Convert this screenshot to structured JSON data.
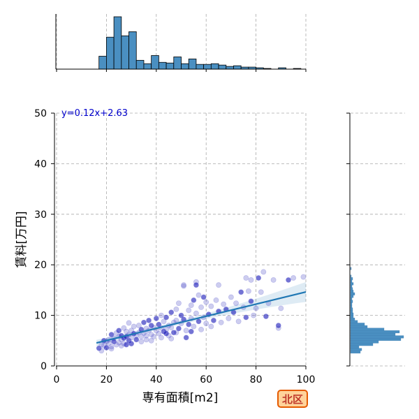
{
  "chart_data": {
    "type": "scatter",
    "xlabel": "専有面積[m2]",
    "ylabel": "賃料[万円]",
    "xlim": [
      0,
      100
    ],
    "ylim": [
      0,
      50
    ],
    "x_ticks": [
      0,
      20,
      40,
      60,
      80,
      100
    ],
    "y_ticks": [
      0,
      10,
      20,
      30,
      40,
      50
    ],
    "grid": true,
    "regression": {
      "slope": 0.12,
      "intercept": 2.63,
      "label": "y=0.12x+2.63",
      "x_range": [
        16,
        100
      ]
    },
    "points": [
      [
        17,
        3.5
      ],
      [
        18,
        4.2
      ],
      [
        18,
        3.0
      ],
      [
        19,
        5.0
      ],
      [
        19,
        4.0
      ],
      [
        20,
        4.8
      ],
      [
        20,
        3.6
      ],
      [
        21,
        5.2
      ],
      [
        21,
        4.5
      ],
      [
        22,
        6.2
      ],
      [
        22,
        3.8
      ],
      [
        23,
        5.5
      ],
      [
        23,
        4.8
      ],
      [
        24,
        6.5
      ],
      [
        24,
        4.2
      ],
      [
        25,
        7.0
      ],
      [
        25,
        5.8
      ],
      [
        25,
        4.6
      ],
      [
        26,
        6.0
      ],
      [
        26,
        5.2
      ],
      [
        27,
        7.5
      ],
      [
        27,
        5.5
      ],
      [
        27,
        4.4
      ],
      [
        28,
        6.8
      ],
      [
        28,
        5.8
      ],
      [
        29,
        8.5
      ],
      [
        29,
        6.2
      ],
      [
        29,
        5.0
      ],
      [
        30,
        7.0
      ],
      [
        30,
        5.6
      ],
      [
        31,
        6.4
      ],
      [
        31,
        7.8
      ],
      [
        32,
        6.0
      ],
      [
        32,
        5.2
      ],
      [
        33,
        8.0
      ],
      [
        33,
        6.6
      ],
      [
        34,
        7.2
      ],
      [
        34,
        5.8
      ],
      [
        35,
        6.5
      ],
      [
        35,
        8.6
      ],
      [
        36,
        7.4
      ],
      [
        36,
        6.0
      ],
      [
        37,
        9.0
      ],
      [
        37,
        7.0
      ],
      [
        38,
        6.2
      ],
      [
        38,
        8.0
      ],
      [
        39,
        7.6
      ],
      [
        39,
        5.8
      ],
      [
        40,
        9.4
      ],
      [
        40,
        7.0
      ],
      [
        41,
        6.4
      ],
      [
        41,
        8.2
      ],
      [
        42,
        10.0
      ],
      [
        42,
        7.5
      ],
      [
        43,
        6.8
      ],
      [
        43,
        8.8
      ],
      [
        44,
        7.2
      ],
      [
        44,
        9.6
      ],
      [
        45,
        8.0
      ],
      [
        45,
        6.0
      ],
      [
        46,
        10.6
      ],
      [
        46,
        7.6
      ],
      [
        47,
        8.6
      ],
      [
        47,
        6.6
      ],
      [
        48,
        11.2
      ],
      [
        48,
        9.0
      ],
      [
        49,
        7.4
      ],
      [
        49,
        12.4
      ],
      [
        50,
        8.4
      ],
      [
        50,
        10.0
      ],
      [
        51,
        16.0
      ],
      [
        51,
        15.8
      ],
      [
        51,
        9.2
      ],
      [
        52,
        7.0
      ],
      [
        53,
        11.0
      ],
      [
        53,
        8.2
      ],
      [
        54,
        12.0
      ],
      [
        54,
        9.4
      ],
      [
        55,
        13.0
      ],
      [
        55,
        7.8
      ],
      [
        56,
        16.6
      ],
      [
        56,
        16.0
      ],
      [
        56,
        10.4
      ],
      [
        57,
        14.0
      ],
      [
        57,
        8.8
      ],
      [
        58,
        11.6
      ],
      [
        59,
        9.6
      ],
      [
        59,
        13.6
      ],
      [
        60,
        8.4
      ],
      [
        60,
        12.6
      ],
      [
        61,
        10.2
      ],
      [
        62,
        7.8
      ],
      [
        62,
        11.8
      ],
      [
        63,
        9.0
      ],
      [
        64,
        13.0
      ],
      [
        65,
        16.0
      ],
      [
        65,
        10.8
      ],
      [
        66,
        8.6
      ],
      [
        67,
        12.2
      ],
      [
        68,
        11.2
      ],
      [
        69,
        9.4
      ],
      [
        70,
        13.6
      ],
      [
        71,
        10.6
      ],
      [
        72,
        12.4
      ],
      [
        73,
        8.8
      ],
      [
        74,
        14.6
      ],
      [
        75,
        11.6
      ],
      [
        76,
        17.4
      ],
      [
        76,
        9.6
      ],
      [
        77,
        14.8
      ],
      [
        78,
        17.0
      ],
      [
        78,
        12.8
      ],
      [
        79,
        10.0
      ],
      [
        80,
        11.4
      ],
      [
        81,
        17.4
      ],
      [
        82,
        14.6
      ],
      [
        83,
        18.6
      ],
      [
        84,
        9.8
      ],
      [
        85,
        12.4
      ],
      [
        87,
        17.0
      ],
      [
        89,
        8.0
      ],
      [
        89,
        7.5
      ],
      [
        90,
        11.4
      ],
      [
        93,
        17.0
      ],
      [
        95,
        17.4
      ],
      [
        99,
        17.6
      ],
      [
        44,
        6.4
      ],
      [
        46,
        5.4
      ],
      [
        48,
        6.6
      ],
      [
        52,
        5.6
      ],
      [
        38,
        5.0
      ],
      [
        34,
        4.8
      ],
      [
        30,
        4.4
      ],
      [
        26,
        4.0
      ],
      [
        22,
        3.4
      ],
      [
        28,
        4.2
      ],
      [
        36,
        5.2
      ],
      [
        42,
        5.6
      ],
      [
        54,
        6.8
      ],
      [
        58,
        7.2
      ]
    ],
    "top_hist": {
      "bin_edges": [
        17,
        20,
        23,
        26,
        29,
        32,
        35,
        38,
        41,
        44,
        47,
        50,
        53,
        56,
        59,
        62,
        65,
        68,
        71,
        74,
        77,
        80,
        83,
        86,
        89,
        92,
        95,
        98
      ],
      "counts": [
        19,
        47,
        77,
        49,
        55,
        13,
        8,
        20,
        10,
        9,
        18,
        8,
        15,
        7,
        7,
        8,
        6,
        4,
        5,
        3,
        3,
        2,
        1,
        0,
        2,
        0,
        1
      ]
    },
    "right_hist": {
      "bin_edges": [
        2.5,
        3.0,
        3.5,
        4.0,
        4.5,
        5.0,
        5.5,
        6.0,
        6.5,
        7.0,
        7.5,
        8.0,
        8.5,
        9.0,
        9.5,
        10.0,
        10.5,
        11.0,
        11.5,
        12.0,
        12.5,
        13.0,
        13.5,
        14.0,
        14.5,
        15.0,
        15.5,
        16.0,
        16.5,
        17.0,
        17.5,
        18.0,
        18.5,
        19.0,
        19.5
      ],
      "counts": [
        14,
        16,
        12,
        32,
        40,
        72,
        76,
        64,
        70,
        48,
        24,
        20,
        10,
        6,
        4,
        4,
        3,
        3,
        2,
        2,
        3,
        2,
        4,
        6,
        4,
        3,
        2,
        4,
        2,
        3,
        1,
        0,
        0,
        1
      ]
    }
  },
  "badge": {
    "label": "北区"
  }
}
